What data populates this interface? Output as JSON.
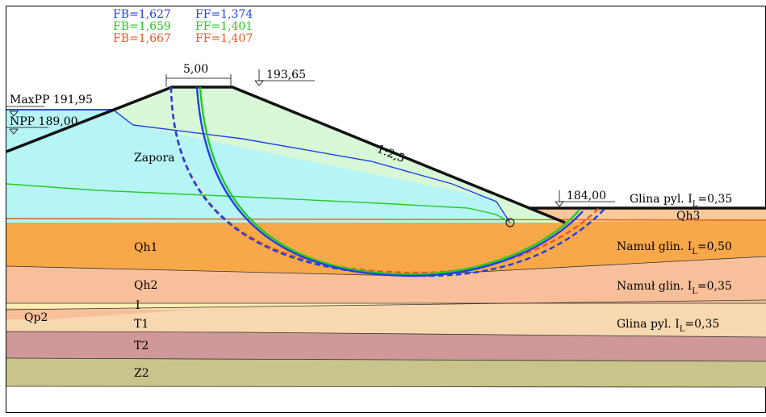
{
  "safety_factors": [
    {
      "fb": "FB=1,627",
      "ff": "FF=1,374",
      "color": "#1f3fe6"
    },
    {
      "fb": "FB=1,659",
      "ff": "FF=1,401",
      "color": "#22cc22"
    },
    {
      "fb": "FB=1,667",
      "ff": "FF=1,407",
      "color": "#ee5522"
    }
  ],
  "crest_width": "5,00",
  "crest_elev": "193,65",
  "maxpp": "MaxPP 191,95",
  "npp": "NPP 189,00",
  "slope": "1:2,5",
  "toe_elev": "184,00",
  "layers": {
    "zapora": "Zapora",
    "qh1": "Qh1",
    "qh2": "Qh2",
    "i": "I",
    "qp2": "Qp2",
    "t1": "T1",
    "t2": "T2",
    "z2": "Z2",
    "qh3": "Qh3"
  },
  "soil_labels": {
    "glina_top_prefix": "Glina pyl. I",
    "glina_top_value": "=0,35",
    "namul1_prefix": "Namuł glin. I",
    "namul1_value": "=0,50",
    "namul2_prefix": "Namuł glin. I",
    "namul2_value": "=0,35",
    "glina_t1_prefix": "Glina pyl. I",
    "glina_t1_value": "=0,35",
    "subscript": "L"
  },
  "colors": {
    "dam_core": "#b6f4f6",
    "dam_dry": "#d8f8d8",
    "qh1": "#f8a848",
    "qh2": "#f8c09a",
    "i_layer": "#fbf0b4",
    "t1": "#f8d8b0",
    "t2": "#d09898",
    "z2": "#c8c48c",
    "qh3": "#f8c898"
  }
}
